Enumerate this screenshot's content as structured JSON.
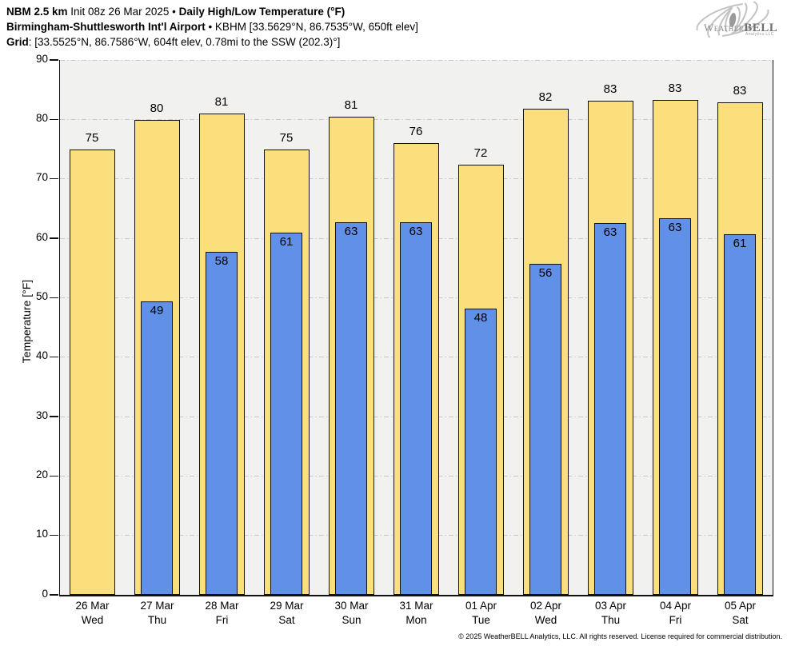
{
  "header": {
    "line1_bold1": "NBM 2.5 km",
    "line1_normal": " Init 08z 26 Mar 2025 • ",
    "line1_bold2": "Daily High/Low Temperature (°F)",
    "line2_bold": "Birmingham-Shuttlesworth Int'l Airport",
    "line2_normal": " • KBHM [33.5629°N, 86.7535°W, 650ft elev]",
    "line3_bold": "Grid",
    "line3_normal": ": [33.5525°N, 86.7586°W, 604ft elev, 0.78mi to the SSW (202.3)°]"
  },
  "logo": {
    "text_weather": "Weather",
    "text_bell": "BELL",
    "text_sub": "Analytics LLC"
  },
  "chart_data": {
    "type": "bar",
    "title": "Daily High/Low Temperature (°F)",
    "xlabel": "",
    "ylabel": "Temperature [°F]",
    "ylim": [
      0,
      90
    ],
    "yticks": [
      0,
      10,
      20,
      30,
      40,
      50,
      60,
      70,
      80,
      90
    ],
    "grid": "horizontal dash-dot",
    "legend": "none",
    "categories": [
      {
        "date": "26 Mar",
        "day": "Wed"
      },
      {
        "date": "27 Mar",
        "day": "Thu"
      },
      {
        "date": "28 Mar",
        "day": "Fri"
      },
      {
        "date": "29 Mar",
        "day": "Sat"
      },
      {
        "date": "30 Mar",
        "day": "Sun"
      },
      {
        "date": "31 Mar",
        "day": "Mon"
      },
      {
        "date": "01 Apr",
        "day": "Tue"
      },
      {
        "date": "02 Apr",
        "day": "Wed"
      },
      {
        "date": "03 Apr",
        "day": "Thu"
      },
      {
        "date": "04 Apr",
        "day": "Fri"
      },
      {
        "date": "05 Apr",
        "day": "Sat"
      }
    ],
    "series": [
      {
        "name": "High",
        "color": "#FBDF7D",
        "labels": [
          75,
          80,
          81,
          75,
          81,
          76,
          72,
          82,
          83,
          83,
          83
        ],
        "values": [
          75.0,
          79.9,
          81.0,
          74.9,
          80.5,
          76.0,
          72.4,
          81.8,
          83.1,
          83.3,
          82.9
        ]
      },
      {
        "name": "Low",
        "color": "#6190E8",
        "labels": [
          null,
          49,
          58,
          61,
          63,
          63,
          48,
          56,
          63,
          63,
          61
        ],
        "values": [
          null,
          49.4,
          57.7,
          61.0,
          62.7,
          62.7,
          48.2,
          55.7,
          62.6,
          63.4,
          60.7
        ]
      }
    ]
  },
  "colors": {
    "high_fill": "#FBDF7D",
    "low_fill": "#6190E8",
    "plot_background": "#F1F1EF",
    "gridline": "#C9C9C9",
    "axis_stroke": "#111111"
  },
  "footer": {
    "copyright": "© 2025 WeatherBELL Analytics, LLC. All rights reserved. License required for commercial distribution."
  }
}
